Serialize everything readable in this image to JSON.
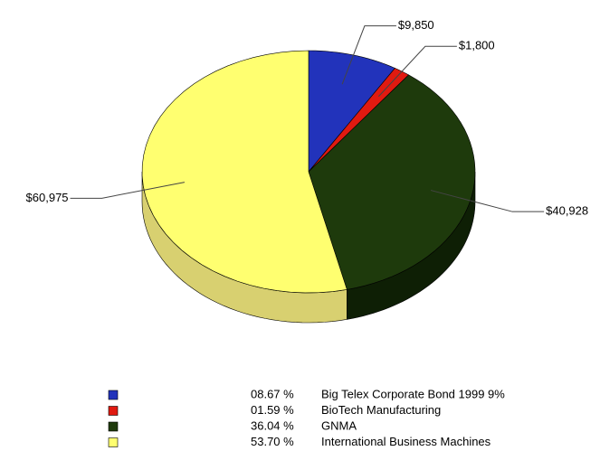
{
  "chart_data": {
    "type": "pie",
    "categories": [
      "Big Telex Corporate Bond 1999 9%",
      "BioTech Manufacturing",
      "GNMA",
      "International Business Machines"
    ],
    "values": [
      9850,
      1800,
      40928,
      60975
    ],
    "value_labels": [
      "$9,850",
      "$1,800",
      "$40,928",
      "$60,975"
    ],
    "percents": [
      8.67,
      1.59,
      36.04,
      53.7
    ],
    "percent_labels": [
      "08.67 %",
      "01.59 %",
      "36.04 %",
      "53.70 %"
    ],
    "colors": [
      "#2233bb",
      "#e01a10",
      "#1e3a0c",
      "#ffff70"
    ],
    "side_colors": [
      "#111a66",
      "#801008",
      "#0e1f05",
      "#d8d070"
    ]
  }
}
